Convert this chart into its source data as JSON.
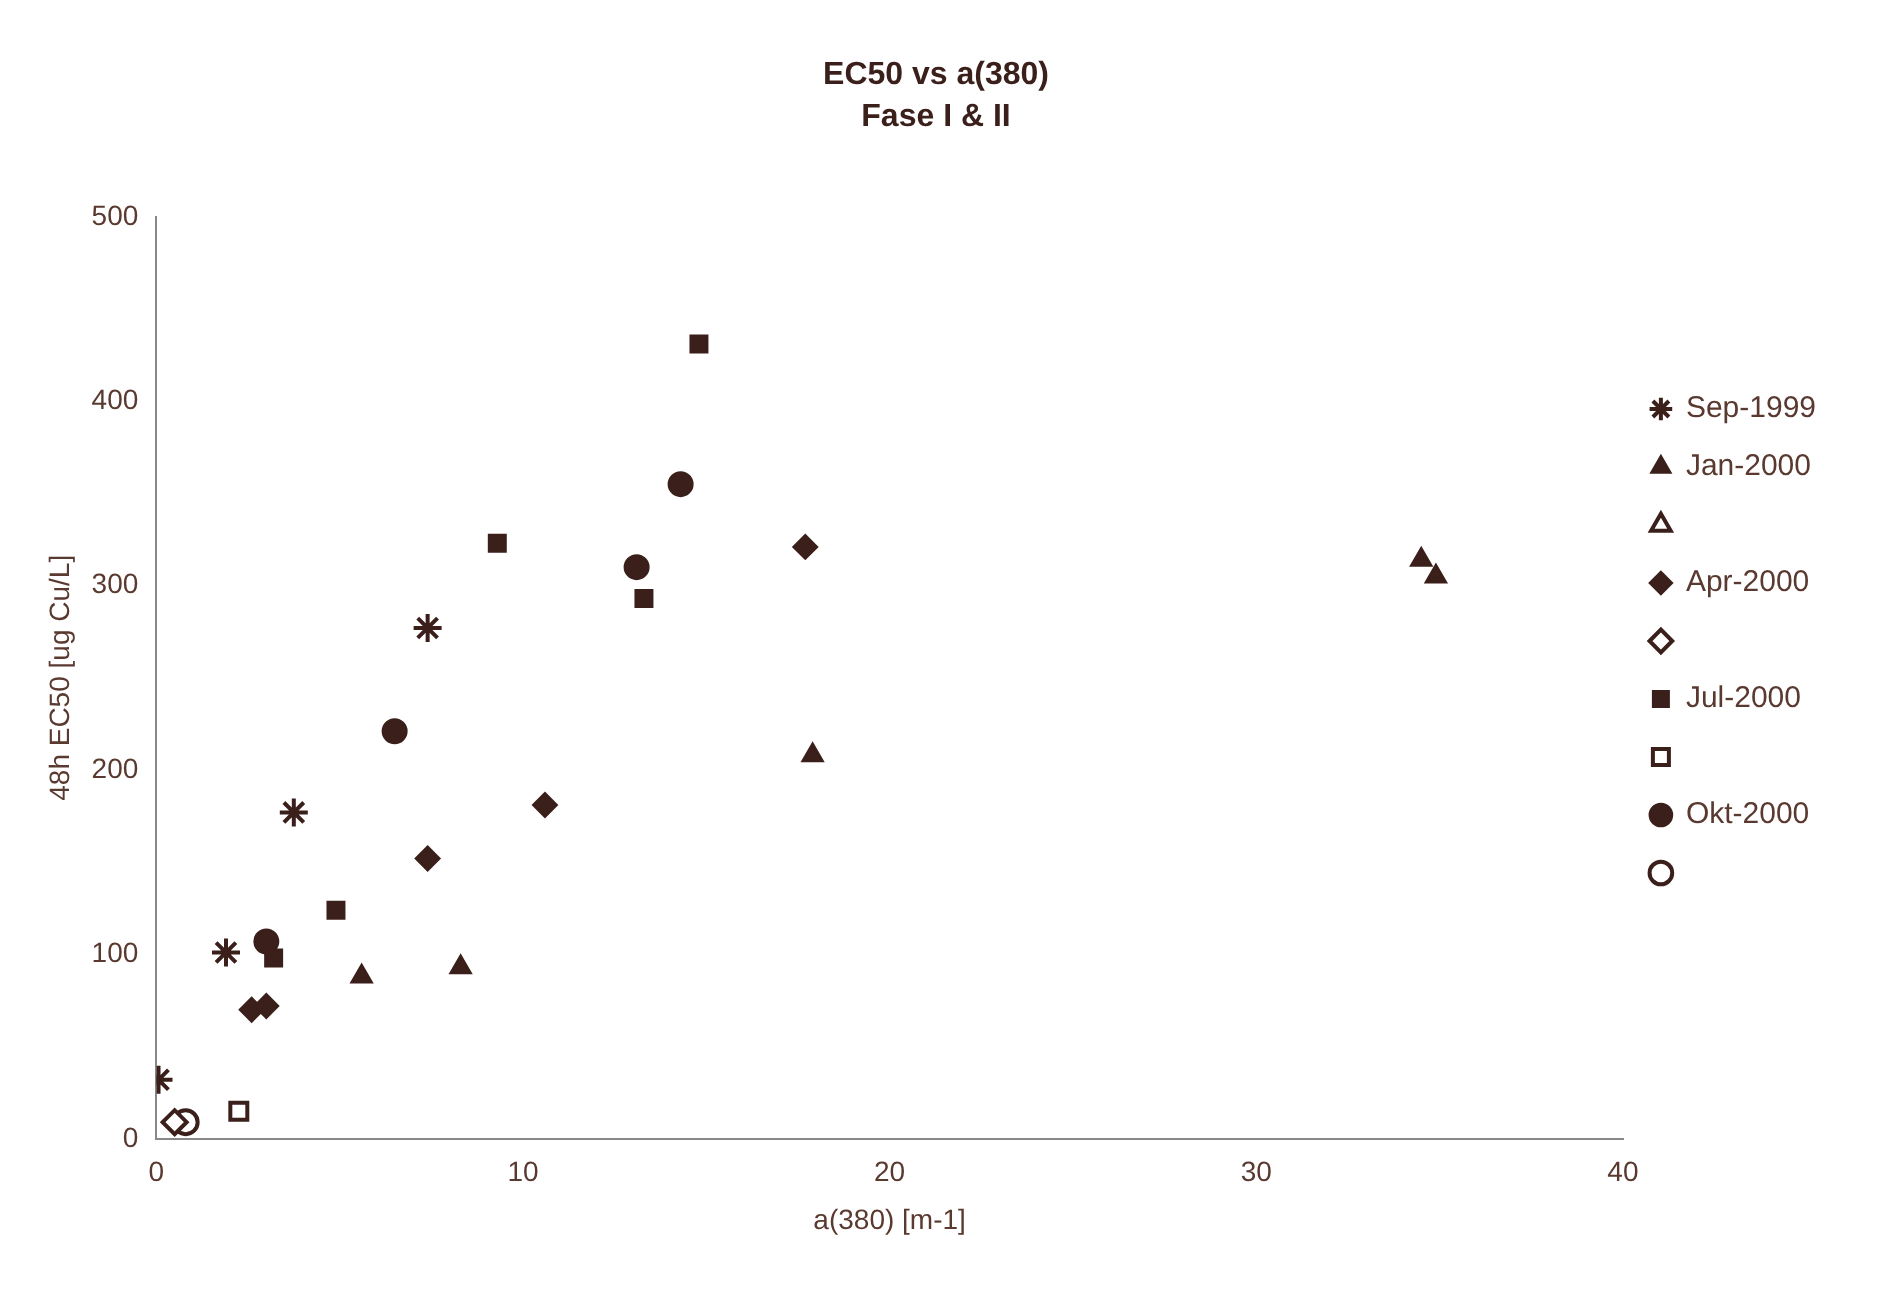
{
  "chart_data": {
    "type": "scatter",
    "title": "EC50 vs a(380)",
    "subtitle": "Fase I & II",
    "xlabel": "a(380) [m-1]",
    "ylabel": "48h EC50 [ug Cu/L]",
    "xlim": [
      0,
      40
    ],
    "xticks": [
      0,
      10,
      20,
      30,
      40
    ],
    "ylim": [
      0,
      500
    ],
    "yticks": [
      0,
      100,
      200,
      300,
      400,
      500
    ],
    "grid": false,
    "legend": "right",
    "series": [
      {
        "name": "Sep-1999",
        "color": "#3a1f1a",
        "marker": "cross",
        "x": [
          0.06,
          1.9,
          3.75,
          7.4
        ],
        "values": [
          32,
          101,
          177,
          277
        ]
      },
      {
        "name": "Jan-2000",
        "color": "#3a1f1a",
        "marker": "triangle",
        "x": [
          5.6,
          8.3,
          17.9,
          34.5,
          34.9
        ],
        "values": [
          88,
          93,
          208,
          314,
          305
        ]
      },
      {
        "color": "#3a1f1a",
        "marker": "triangle"
      },
      {
        "name": "Apr-2000",
        "color": "#3a1f1a",
        "marker": "diamond",
        "x": [
          2.6,
          3.0,
          7.4,
          10.6,
          17.7
        ],
        "values": [
          70,
          72,
          152,
          181,
          321
        ]
      },
      {
        "color": "#3a1f1a",
        "marker": "diamond",
        "x": [
          0.5
        ],
        "values": [
          9
        ]
      },
      {
        "name": "Jul-2000",
        "color": "#3a1f1a",
        "marker": "square",
        "x": [
          3.2,
          4.9,
          9.3,
          13.3,
          14.8
        ],
        "values": [
          98,
          124,
          323,
          293,
          431
        ]
      },
      {
        "color": "#3a1f1a",
        "marker": "square",
        "x": [
          2.25
        ],
        "values": [
          15
        ]
      },
      {
        "name": "Okt-2000",
        "color": "#3a1f1a",
        "marker": "circle",
        "x": [
          3.0,
          6.5,
          13.1,
          14.3
        ],
        "values": [
          107,
          221,
          310,
          355
        ]
      },
      {
        "color": "#3a1f1a",
        "marker": "circle",
        "x": [
          0.8
        ],
        "values": [
          9
        ]
      }
    ]
  }
}
